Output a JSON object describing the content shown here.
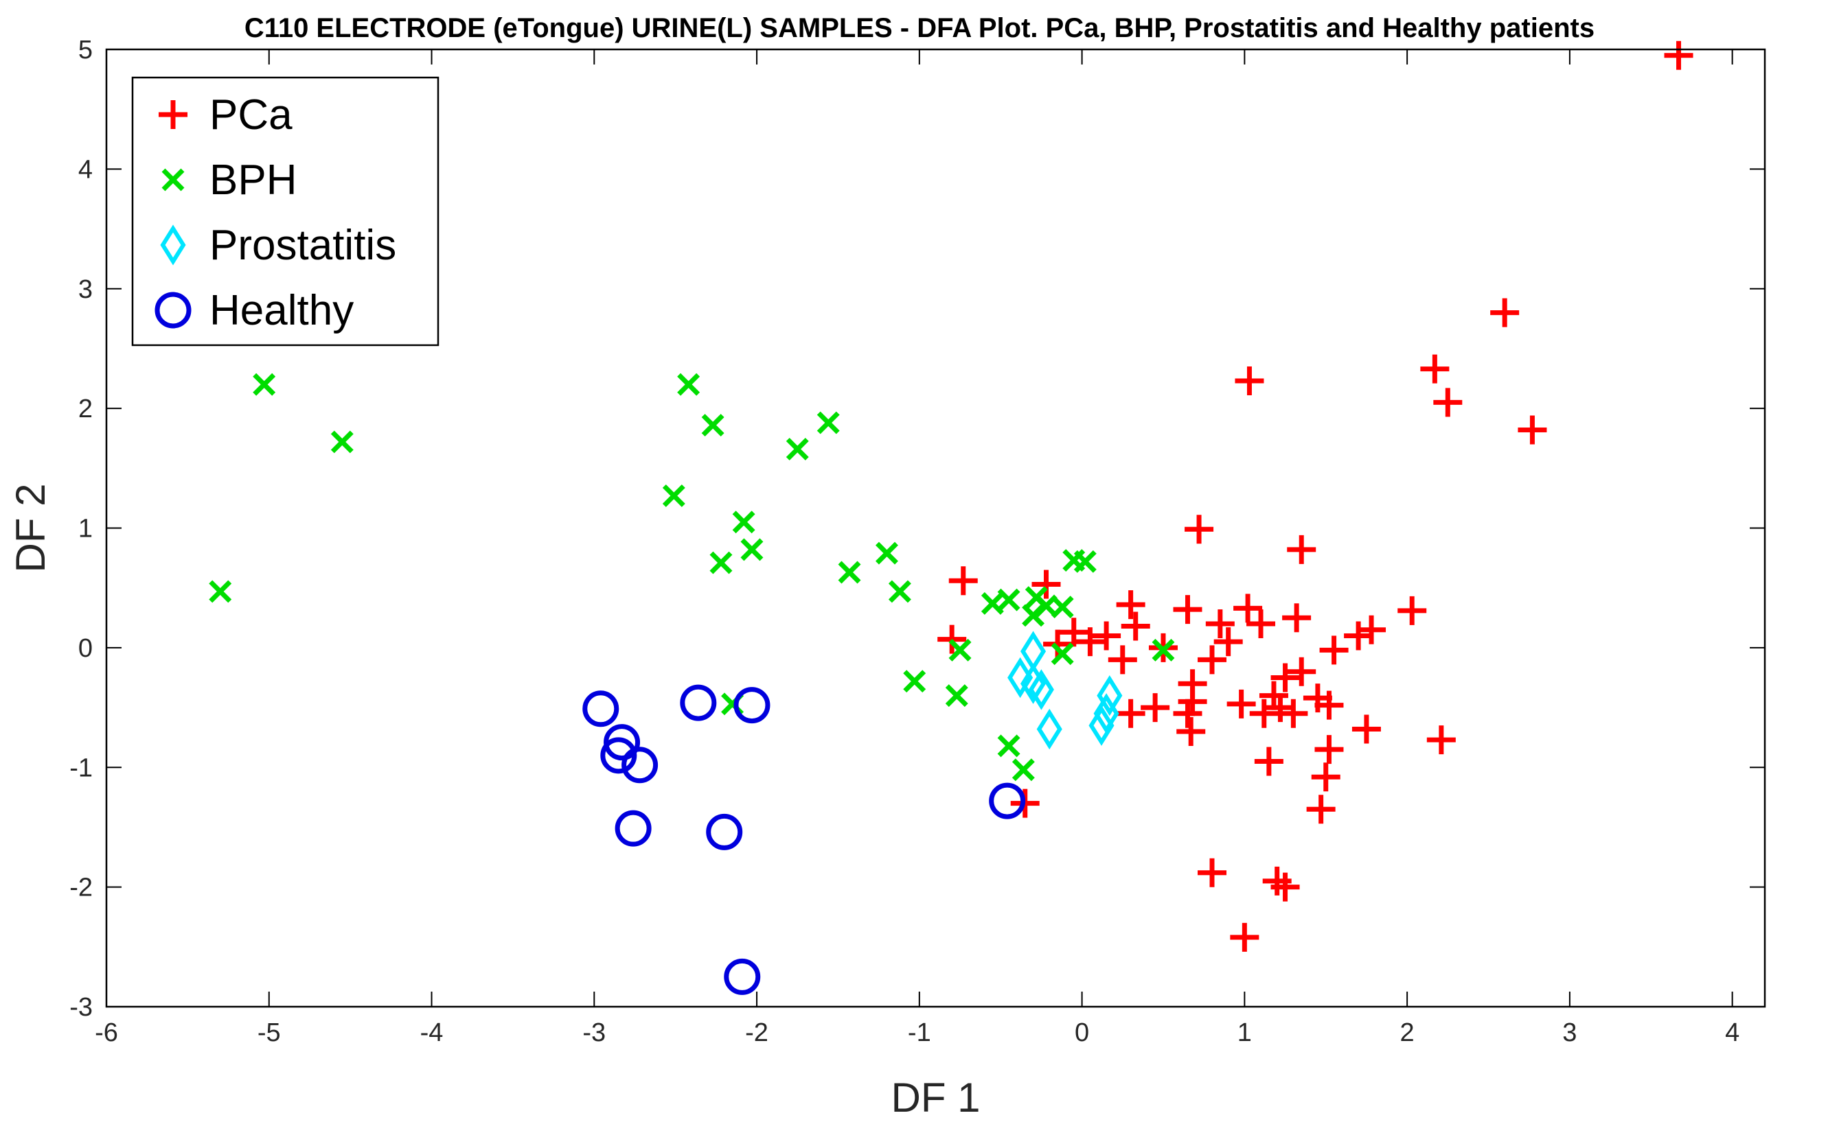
{
  "chart_data": {
    "type": "scatter",
    "title": "C110 ELECTRODE (eTongue) URINE(L) SAMPLES - DFA Plot.  PCa, BHP, Prostatitis and Healthy patients",
    "xlabel": "DF 1",
    "ylabel": "DF 2",
    "xlim": [
      -6,
      4.2
    ],
    "ylim": [
      -3,
      5
    ],
    "xticks": [
      -6,
      -5,
      -4,
      -3,
      -2,
      -1,
      0,
      1,
      2,
      3,
      4
    ],
    "yticks": [
      -3,
      -2,
      -1,
      0,
      1,
      2,
      3,
      4,
      5
    ],
    "grid": false,
    "legend_position": "top-left",
    "series": [
      {
        "name": "PCa",
        "marker": "plus",
        "color": "#ff0000",
        "points": [
          [
            3.67,
            4.95
          ],
          [
            2.6,
            2.8
          ],
          [
            2.17,
            2.33
          ],
          [
            2.25,
            2.05
          ],
          [
            2.77,
            1.82
          ],
          [
            1.03,
            2.23
          ],
          [
            0.72,
            0.99
          ],
          [
            1.35,
            0.82
          ],
          [
            -0.73,
            0.56
          ],
          [
            -0.22,
            0.53
          ],
          [
            -0.8,
            0.07
          ],
          [
            0.3,
            0.36
          ],
          [
            0.65,
            0.32
          ],
          [
            0.85,
            0.2
          ],
          [
            1.02,
            0.33
          ],
          [
            1.1,
            0.2
          ],
          [
            1.32,
            0.25
          ],
          [
            2.03,
            0.31
          ],
          [
            1.78,
            0.15
          ],
          [
            1.7,
            0.1
          ],
          [
            -0.05,
            0.13
          ],
          [
            0.05,
            0.05
          ],
          [
            0.15,
            0.1
          ],
          [
            0.33,
            0.18
          ],
          [
            0.5,
            0.0
          ],
          [
            0.8,
            -0.1
          ],
          [
            1.25,
            -0.25
          ],
          [
            1.35,
            -0.2
          ],
          [
            1.55,
            -0.02
          ],
          [
            0.25,
            -0.1
          ],
          [
            0.3,
            -0.55
          ],
          [
            0.45,
            -0.5
          ],
          [
            0.65,
            -0.55
          ],
          [
            0.68,
            -0.3
          ],
          [
            0.68,
            -0.45
          ],
          [
            0.98,
            -0.47
          ],
          [
            1.12,
            -0.55
          ],
          [
            1.22,
            -0.5
          ],
          [
            1.3,
            -0.55
          ],
          [
            1.45,
            -0.42
          ],
          [
            1.52,
            -0.48
          ],
          [
            1.52,
            -0.85
          ],
          [
            1.5,
            -1.08
          ],
          [
            1.47,
            -1.35
          ],
          [
            1.75,
            -0.68
          ],
          [
            2.21,
            -0.77
          ],
          [
            1.15,
            -0.95
          ],
          [
            0.67,
            -0.7
          ],
          [
            0.8,
            -1.88
          ],
          [
            1.2,
            -1.95
          ],
          [
            1.25,
            -2.0
          ],
          [
            1.0,
            -2.42
          ],
          [
            -0.35,
            -1.3
          ],
          [
            -0.15,
            0.03
          ],
          [
            0.9,
            0.05
          ],
          [
            1.18,
            -0.4
          ]
        ]
      },
      {
        "name": "BPH",
        "marker": "x",
        "color": "#00dd00",
        "points": [
          [
            -5.3,
            0.47
          ],
          [
            -5.03,
            2.2
          ],
          [
            -4.55,
            1.72
          ],
          [
            -2.42,
            2.2
          ],
          [
            -2.27,
            1.86
          ],
          [
            -1.75,
            1.66
          ],
          [
            -1.56,
            1.88
          ],
          [
            -2.51,
            1.27
          ],
          [
            -2.08,
            1.05
          ],
          [
            -2.03,
            0.82
          ],
          [
            -2.22,
            0.71
          ],
          [
            -1.2,
            0.79
          ],
          [
            -1.43,
            0.63
          ],
          [
            -1.12,
            0.47
          ],
          [
            -0.55,
            0.37
          ],
          [
            -0.45,
            0.4
          ],
          [
            -0.28,
            0.42
          ],
          [
            -0.22,
            0.35
          ],
          [
            -0.12,
            0.34
          ],
          [
            -0.05,
            0.73
          ],
          [
            0.02,
            0.72
          ],
          [
            -0.3,
            0.27
          ],
          [
            -0.75,
            -0.02
          ],
          [
            -0.12,
            -0.05
          ],
          [
            0.5,
            -0.02
          ],
          [
            -1.03,
            -0.28
          ],
          [
            -0.77,
            -0.4
          ],
          [
            -2.15,
            -0.47
          ],
          [
            -0.45,
            -0.82
          ],
          [
            -0.36,
            -1.02
          ]
        ]
      },
      {
        "name": "Prostatitis",
        "marker": "diamond",
        "color": "#00e5ff",
        "points": [
          [
            -0.3,
            -0.03
          ],
          [
            -0.38,
            -0.25
          ],
          [
            -0.3,
            -0.3
          ],
          [
            -0.25,
            -0.35
          ],
          [
            -0.2,
            -0.68
          ],
          [
            0.17,
            -0.4
          ],
          [
            0.15,
            -0.55
          ],
          [
            0.12,
            -0.65
          ]
        ]
      },
      {
        "name": "Healthy",
        "marker": "circle",
        "color": "#0000dd",
        "points": [
          [
            -2.96,
            -0.51
          ],
          [
            -2.83,
            -0.79
          ],
          [
            -2.85,
            -0.9
          ],
          [
            -2.72,
            -0.98
          ],
          [
            -2.76,
            -1.51
          ],
          [
            -2.36,
            -0.46
          ],
          [
            -2.03,
            -0.48
          ],
          [
            -2.2,
            -1.54
          ],
          [
            -2.09,
            -2.75
          ],
          [
            -0.46,
            -1.28
          ]
        ]
      }
    ]
  }
}
